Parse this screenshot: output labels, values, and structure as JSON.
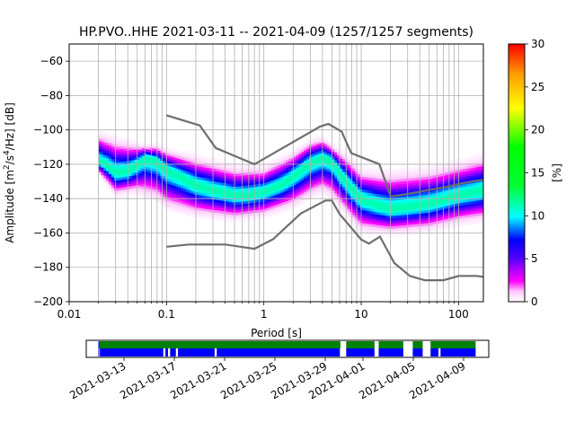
{
  "chart_data": [
    {
      "type": "heatmap",
      "title": "HP.PVO..HHE   2021-03-11 -- 2021-04-09  (1257/1257 segments)",
      "xlabel": "Period [s]",
      "ylabel_prefix": "Amplitude [m",
      "ylabel_sup1": "2",
      "ylabel_mid": "/s",
      "ylabel_sup2": "4",
      "ylabel_suffix": "/Hz] [dB]",
      "x_scale": "log",
      "xlim": [
        0.01,
        180
      ],
      "ylim": [
        -200,
        -50
      ],
      "grid": true,
      "x_ticks": [
        {
          "value": 0.01,
          "label": "0.01"
        },
        {
          "value": 0.1,
          "label": "0.1"
        },
        {
          "value": 1,
          "label": "1"
        },
        {
          "value": 10,
          "label": "10"
        },
        {
          "value": 100,
          "label": "100"
        }
      ],
      "y_ticks": [
        {
          "value": -60,
          "label": "−60"
        },
        {
          "value": -80,
          "label": "−80"
        },
        {
          "value": -100,
          "label": "−100"
        },
        {
          "value": -120,
          "label": "−120"
        },
        {
          "value": -140,
          "label": "−140"
        },
        {
          "value": -160,
          "label": "−160"
        },
        {
          "value": -180,
          "label": "−180"
        },
        {
          "value": -200,
          "label": "−200"
        }
      ],
      "period_range": [
        0.02,
        180
      ],
      "mode_curve": {
        "period": [
          0.02,
          0.025,
          0.03,
          0.04,
          0.05,
          0.06,
          0.08,
          0.1,
          0.15,
          0.2,
          0.3,
          0.5,
          0.7,
          1,
          1.5,
          2,
          3,
          4,
          5,
          6,
          8,
          10,
          15,
          20,
          30,
          50,
          100,
          180
        ],
        "amplitude": [
          -118,
          -121,
          -125,
          -124,
          -120,
          -116,
          -118,
          -123,
          -128,
          -132,
          -135,
          -138,
          -138,
          -136,
          -132,
          -127,
          -119,
          -116,
          -118,
          -125,
          -134,
          -140,
          -144,
          -146,
          -145,
          -143,
          -138,
          -135
        ]
      },
      "upper_edge": {
        "period": [
          0.02,
          0.03,
          0.05,
          0.08,
          0.1,
          0.2,
          0.5,
          1,
          2,
          3,
          4,
          5,
          8,
          10,
          20,
          50,
          100,
          180
        ],
        "amplitude": [
          -104,
          -108,
          -110,
          -110,
          -113,
          -118,
          -124,
          -124,
          -115,
          -108,
          -106,
          -110,
          -120,
          -126,
          -128,
          -126,
          -122,
          -118
        ]
      },
      "lower_edge": {
        "period": [
          0.02,
          0.03,
          0.05,
          0.08,
          0.1,
          0.2,
          0.5,
          1,
          2,
          3,
          4,
          5,
          8,
          10,
          20,
          50,
          100,
          180
        ],
        "amplitude": [
          -124,
          -136,
          -134,
          -137,
          -142,
          -147,
          -150,
          -148,
          -142,
          -136,
          -133,
          -136,
          -150,
          -156,
          -158,
          -156,
          -152,
          -150
        ]
      },
      "noise_models": [
        {
          "period": [
            0.1,
            0.22,
            0.32,
            0.8,
            3.8,
            4.6,
            6.3,
            7.9,
            15.4,
            20,
            21.9,
            31.6,
            45,
            70,
            101,
            154,
            178
          ],
          "amplitude": [
            -91.5,
            -97.4,
            -110.5,
            -120,
            -98,
            -96.5,
            -101,
            -113.5,
            -120,
            -138.5,
            -138.5,
            -137,
            -135.5,
            -133.5,
            -131.5,
            -129.5,
            -129
          ]
        },
        {
          "period": [
            0.1,
            0.17,
            0.4,
            0.8,
            1.24,
            2.4,
            4.3,
            5,
            6,
            10,
            12,
            15.6,
            21.9,
            31.6,
            45,
            70,
            101,
            154,
            178
          ],
          "amplitude": [
            -168,
            -166.7,
            -166.7,
            -169.2,
            -163.7,
            -148.6,
            -141.1,
            -141.1,
            -149,
            -163.8,
            -166.2,
            -162.1,
            -177.5,
            -185,
            -187.5,
            -187.5,
            -185,
            -185,
            -185.5
          ]
        }
      ],
      "colorbar": {
        "label": "[%]",
        "range": [
          0,
          30
        ],
        "ticks": [
          "0",
          "5",
          "10",
          "15",
          "20",
          "25",
          "30"
        ],
        "colormap": "pqlx"
      }
    },
    {
      "type": "timeline",
      "x_range": [
        "2021-03-10T00:00",
        "2021-04-11T00:00"
      ],
      "x_ticks": [
        "2021-03-13",
        "2021-03-17",
        "2021-03-21",
        "2021-03-25",
        "2021-03-29",
        "2021-04-01",
        "2021-04-05",
        "2021-04-09"
      ],
      "data_coverage": [
        [
          "2021-03-11T00:00",
          "2021-03-30T05:00"
        ],
        [
          "2021-03-30T16:00",
          "2021-04-01T22:00"
        ],
        [
          "2021-04-02T06:00",
          "2021-04-04T05:00"
        ],
        [
          "2021-04-04T23:00",
          "2021-04-05T18:00"
        ],
        [
          "2021-04-06T09:00",
          "2021-04-09T23:00"
        ]
      ],
      "psd_segments": [
        [
          "2021-03-11T02:00",
          "2021-03-16T03:00"
        ],
        [
          "2021-03-16T07:00",
          "2021-03-16T12:00"
        ],
        [
          "2021-03-16T16:00",
          "2021-03-17T03:00"
        ],
        [
          "2021-03-17T07:00",
          "2021-03-20T05:00"
        ],
        [
          "2021-03-20T09:00",
          "2021-03-30T04:00"
        ],
        [
          "2021-03-30T16:00",
          "2021-04-01T22:00"
        ],
        [
          "2021-04-02T06:00",
          "2021-04-04T05:00"
        ],
        [
          "2021-04-04T23:00",
          "2021-04-05T18:00"
        ],
        [
          "2021-04-06T09:00",
          "2021-04-07T00:00"
        ],
        [
          "2021-04-07T04:00",
          "2021-04-09T23:00"
        ]
      ],
      "colors": {
        "data_coverage": "#008000",
        "psd_segments": "#0000ff"
      }
    }
  ]
}
